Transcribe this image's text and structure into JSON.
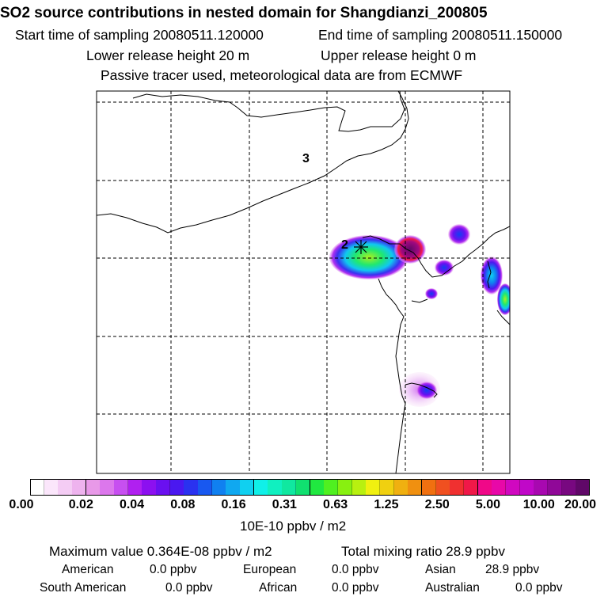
{
  "header": {
    "title": "SO2 source contributions in nested domain for Shangdianzi_200805",
    "start_time": "Start time of sampling 20080511.120000",
    "end_time": "End time of sampling 20080511.150000",
    "lower_release": "Lower release height   20 m",
    "upper_release": "Upper release height    0 m",
    "tracer_note": "Passive tracer used, meteorological data are from ECMWF"
  },
  "map": {
    "region_labels": [
      "3",
      "2"
    ],
    "receptor_marker": "asterisk"
  },
  "colorbar": {
    "unit": "10E-10 ppbv / m2",
    "ticks": [
      "0.00",
      "0.02",
      "0.04",
      "0.08",
      "0.16",
      "0.31",
      "0.63",
      "1.25",
      "2.50",
      "5.00",
      "10.00",
      "20.00"
    ],
    "colors": [
      "#ffffff",
      "#fbe6fb",
      "#f4ccf4",
      "#eeb3ee",
      "#e899e8",
      "#dc77ec",
      "#c74ff0",
      "#b020f0",
      "#8c10f0",
      "#6a10f0",
      "#4a18f0",
      "#2a32f0",
      "#1858f0",
      "#1080f0",
      "#10a8f0",
      "#10d0f0",
      "#10f0e8",
      "#10f0c0",
      "#10e8a0",
      "#10e070",
      "#20e840",
      "#50f020",
      "#88f010",
      "#b8f010",
      "#f0f010",
      "#f0d010",
      "#f0b010",
      "#f09010",
      "#f07010",
      "#f05020",
      "#f03030",
      "#f01848",
      "#f00888",
      "#e808a8",
      "#d008c0",
      "#c008c8",
      "#a808b0",
      "#900898",
      "#780880",
      "#600868"
    ]
  },
  "stats": {
    "max_value": "Maximum value  0.364E-08 ppbv / m2",
    "total_mixing": "Total mixing ratio      28.9 ppbv",
    "american": "American",
    "american_value": "0.0 ppbv",
    "european": "European",
    "european_value": "0.0 ppbv",
    "asian": "Asian",
    "asian_value": "28.9 ppbv",
    "south_american": "South American",
    "south_american_value": "0.0 ppbv",
    "african": "African",
    "african_value": "0.0 ppbv",
    "australian": "Australian",
    "australian_value": "0.0 ppbv"
  }
}
